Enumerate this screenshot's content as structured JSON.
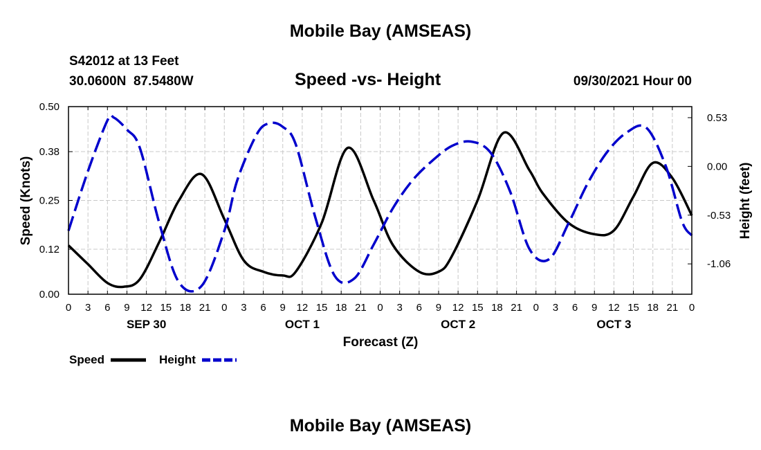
{
  "page": {
    "title_top": "Mobile Bay (AMSEAS)",
    "title_bottom": "Mobile Bay (AMSEAS)",
    "station": "S42012 at 13 Feet",
    "coords": "30.0600N  87.5480W",
    "subtitle": "Speed -vs- Height",
    "datetime": "09/30/2021 Hour 00"
  },
  "colors": {
    "speed": "#000000",
    "height": "#0000cc",
    "grid": "#c8c8c8"
  },
  "chart_data": {
    "type": "line",
    "title": "Speed -vs- Height",
    "xlabel": "Forecast (Z)",
    "ylabel": "Speed (Knots)",
    "y2label": "Height (feet)",
    "xlim": [
      0,
      96
    ],
    "ylim": [
      0.0,
      0.5
    ],
    "y2lim": [
      -1.39,
      0.65
    ],
    "x_ticks": [
      0,
      3,
      6,
      9,
      12,
      15,
      18,
      21,
      24,
      27,
      30,
      33,
      36,
      39,
      42,
      45,
      48,
      51,
      54,
      57,
      60,
      63,
      66,
      69,
      72,
      75,
      78,
      81,
      84,
      87,
      90,
      93,
      96
    ],
    "x_tick_labels": [
      "0",
      "3",
      "6",
      "9",
      "12",
      "15",
      "18",
      "21",
      "0",
      "3",
      "6",
      "9",
      "12",
      "15",
      "18",
      "21",
      "0",
      "3",
      "6",
      "9",
      "12",
      "15",
      "18",
      "21",
      "0",
      "3",
      "6",
      "9",
      "12",
      "15",
      "18",
      "21",
      "0"
    ],
    "day_labels": [
      {
        "x": 12,
        "label": "SEP 30"
      },
      {
        "x": 36,
        "label": "OCT 1"
      },
      {
        "x": 60,
        "label": "OCT 2"
      },
      {
        "x": 84,
        "label": "OCT 3"
      }
    ],
    "y_ticks": [
      0.0,
      0.12,
      0.25,
      0.38,
      0.5
    ],
    "y_tick_labels": [
      "0.00",
      "0.12",
      "0.25",
      "0.38",
      "0.50"
    ],
    "y2_ticks": [
      0.53,
      0.0,
      -0.53,
      -1.06
    ],
    "y2_tick_labels": [
      "0.53",
      "0.00",
      "-0.53",
      "-1.06"
    ],
    "grid": true,
    "legend": {
      "placement": "bottom-left",
      "entries": [
        "Speed",
        "Height"
      ]
    },
    "series": [
      {
        "name": "Speed",
        "axis": "left",
        "style": "solid",
        "x": [
          0,
          3,
          6,
          8.5,
          11,
          14,
          17,
          20.5,
          24,
          27,
          30,
          33,
          35,
          39,
          43,
          47,
          50,
          54,
          57,
          59,
          63,
          67,
          71,
          73,
          77,
          81,
          84,
          87,
          90,
          93,
          96
        ],
        "y": [
          0.13,
          0.08,
          0.03,
          0.02,
          0.04,
          0.14,
          0.25,
          0.32,
          0.2,
          0.09,
          0.06,
          0.05,
          0.06,
          0.19,
          0.39,
          0.25,
          0.13,
          0.06,
          0.06,
          0.1,
          0.25,
          0.43,
          0.33,
          0.27,
          0.19,
          0.16,
          0.17,
          0.26,
          0.35,
          0.31,
          0.21
        ]
      },
      {
        "name": "Height",
        "axis": "right",
        "style": "dashed",
        "x": [
          0,
          3,
          6,
          7,
          9,
          11,
          14,
          17,
          20.5,
          24,
          26,
          29,
          31,
          33,
          35,
          38,
          41,
          44,
          47,
          50,
          53,
          56,
          59,
          62,
          65,
          68,
          71,
          74,
          77,
          80,
          83,
          86,
          89,
          92,
          94.5,
          96
        ],
        "y": [
          -0.7,
          -0.05,
          0.5,
          0.53,
          0.4,
          0.2,
          -0.62,
          -1.26,
          -1.3,
          -0.7,
          -0.15,
          0.35,
          0.47,
          0.43,
          0.24,
          -0.55,
          -1.19,
          -1.22,
          -0.85,
          -0.45,
          -0.15,
          0.06,
          0.22,
          0.27,
          0.15,
          -0.27,
          -0.9,
          -1.01,
          -0.62,
          -0.18,
          0.16,
          0.37,
          0.42,
          0.0,
          -0.6,
          -0.75
        ]
      }
    ]
  }
}
